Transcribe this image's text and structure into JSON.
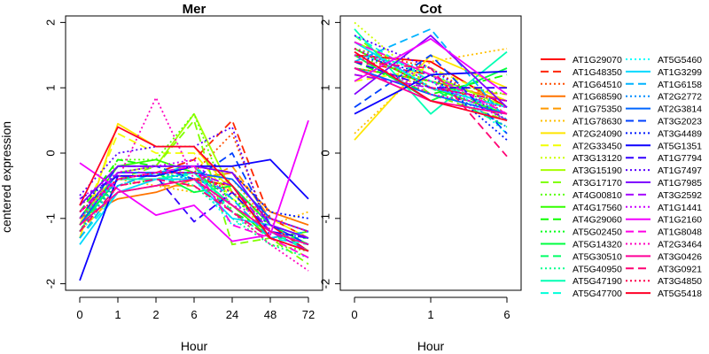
{
  "figure": {
    "ylabel": "centered expression",
    "xlabel": "Hour"
  },
  "chart_data": [
    {
      "type": "line",
      "title": "Mer",
      "xlabel": "Hour",
      "ylabel": "centered expression",
      "categories": [
        "0",
        "1",
        "2",
        "6",
        "24",
        "48",
        "72"
      ],
      "ylim": [
        -2.1,
        2.1
      ],
      "yticks": [
        "-2",
        "-1",
        "0",
        "1",
        "2"
      ],
      "grid": false,
      "series": [
        {
          "name": "AT1G29070",
          "values": [
            -1.0,
            -0.4,
            -0.4,
            -0.4,
            -0.5,
            -1.1,
            -1.5
          ]
        },
        {
          "name": "AT1G48350",
          "values": [
            -0.9,
            -0.4,
            -0.3,
            -0.1,
            0.5,
            -1.0,
            -1.3
          ]
        },
        {
          "name": "AT1G64510",
          "values": [
            -1.1,
            -0.5,
            -0.4,
            -0.3,
            0.3,
            -1.2,
            -1.4
          ]
        },
        {
          "name": "AT1G68590",
          "values": [
            -1.0,
            -0.7,
            -0.6,
            -0.4,
            -0.3,
            -0.9,
            -1.1
          ]
        },
        {
          "name": "AT1G75350",
          "values": [
            -1.2,
            -0.6,
            -0.5,
            -0.5,
            -0.2,
            -1.0,
            -1.2
          ]
        },
        {
          "name": "AT1G78630",
          "values": [
            -0.8,
            -0.4,
            -0.5,
            -0.6,
            -0.4,
            -1.1,
            -0.9
          ]
        },
        {
          "name": "AT2G24090",
          "values": [
            -1.3,
            0.45,
            0.1,
            0.1,
            -0.6,
            -1.2,
            -1.5
          ]
        },
        {
          "name": "AT2G33450",
          "values": [
            -1.1,
            0.3,
            0.0,
            0.0,
            -0.7,
            -1.0,
            -1.3
          ]
        },
        {
          "name": "AT3G13120",
          "values": [
            -1.2,
            -0.6,
            -0.4,
            -0.2,
            -0.6,
            -1.3,
            -1.6
          ]
        },
        {
          "name": "AT3G15190",
          "values": [
            -1.0,
            -0.3,
            -0.2,
            0.6,
            -0.6,
            -1.2,
            -1.4
          ]
        },
        {
          "name": "AT3G17170",
          "values": [
            -1.1,
            -0.4,
            -0.2,
            0.5,
            -1.4,
            -1.3,
            -1.7
          ]
        },
        {
          "name": "AT4G00810",
          "values": [
            -1.2,
            -0.1,
            -0.1,
            0.6,
            -0.9,
            -1.4,
            -1.5
          ]
        },
        {
          "name": "AT4G17560",
          "values": [
            -1.0,
            -0.2,
            -0.1,
            -0.3,
            -0.8,
            -1.3,
            -1.2
          ]
        },
        {
          "name": "AT4G29060",
          "values": [
            -0.9,
            -0.1,
            -0.2,
            -0.4,
            -0.9,
            -1.2,
            -1.4
          ]
        },
        {
          "name": "AT5G02450",
          "values": [
            -1.0,
            -0.5,
            -0.4,
            -0.3,
            -0.7,
            -1.1,
            -1.3
          ]
        },
        {
          "name": "AT5G14320",
          "values": [
            -1.1,
            -0.4,
            -0.3,
            -0.6,
            -0.5,
            -1.1,
            -1.4
          ]
        },
        {
          "name": "AT5G30510",
          "values": [
            -1.2,
            -0.3,
            -0.3,
            -0.2,
            -0.9,
            -1.3,
            -1.3
          ]
        },
        {
          "name": "AT5G40950",
          "values": [
            -1.1,
            -0.5,
            -0.3,
            -0.5,
            -1.0,
            -1.4,
            -1.6
          ]
        },
        {
          "name": "AT5G47190",
          "values": [
            -1.0,
            -0.4,
            -0.4,
            -0.3,
            -0.8,
            -1.2,
            -1.5
          ]
        },
        {
          "name": "AT5G47700",
          "values": [
            -1.3,
            -0.6,
            -0.5,
            -0.3,
            -0.9,
            -1.3,
            -1.4
          ]
        },
        {
          "name": "AT5G5460",
          "values": [
            -1.2,
            -0.5,
            -0.3,
            -0.4,
            -1.1,
            -1.0,
            -1.2
          ]
        },
        {
          "name": "AT1G3299",
          "values": [
            -1.4,
            -0.6,
            -0.4,
            -0.4,
            -1.0,
            -1.1,
            -1.3
          ]
        },
        {
          "name": "AT1G6158",
          "values": [
            -1.3,
            -0.5,
            -0.3,
            -0.2,
            -0.7,
            -1.3,
            -1.2
          ]
        },
        {
          "name": "AT2G2772",
          "values": [
            -1.2,
            -0.4,
            -0.3,
            -0.4,
            -0.6,
            -1.2,
            -1.3
          ]
        },
        {
          "name": "AT2G3814",
          "values": [
            -1.1,
            -0.3,
            -0.3,
            -0.3,
            -0.4,
            -1.0,
            -1.2
          ]
        },
        {
          "name": "AT3G2023",
          "values": [
            -1.0,
            -0.2,
            -0.2,
            -0.4,
            0.0,
            -1.1,
            -1.4
          ]
        },
        {
          "name": "AT3G4489",
          "values": [
            -0.8,
            -0.3,
            -0.2,
            -0.2,
            -0.3,
            -0.9,
            -1.0
          ]
        },
        {
          "name": "AT5G1351",
          "values": [
            -1.95,
            -0.35,
            -0.35,
            -0.2,
            -0.2,
            -0.1,
            -0.7
          ]
        },
        {
          "name": "AT1G7794",
          "values": [
            -0.7,
            -0.35,
            -0.35,
            -1.05,
            -0.6,
            -1.2,
            -1.3
          ]
        },
        {
          "name": "AT1G7497",
          "values": [
            -0.65,
            0.0,
            0.1,
            0.1,
            0.4,
            -1.3,
            -1.5
          ]
        },
        {
          "name": "AT1G7985",
          "values": [
            -0.8,
            -0.2,
            -0.2,
            -0.2,
            -0.3,
            -1.1,
            -1.3
          ]
        },
        {
          "name": "AT3G2592",
          "values": [
            -0.9,
            -0.3,
            -0.3,
            -0.3,
            -0.5,
            -1.2,
            -1.5
          ]
        },
        {
          "name": "AT1G1441",
          "values": [
            -0.7,
            -0.3,
            -0.2,
            -0.1,
            -0.8,
            -1.0,
            -1.2
          ]
        },
        {
          "name": "AT1G2160",
          "values": [
            -0.15,
            -0.55,
            -0.95,
            -0.8,
            -1.35,
            -1.25,
            0.5
          ]
        },
        {
          "name": "AT1G8048",
          "values": [
            -0.9,
            -0.4,
            -0.3,
            -0.2,
            -1.1,
            -1.3,
            -1.6
          ]
        },
        {
          "name": "AT2G3464",
          "values": [
            -1.0,
            -0.4,
            0.85,
            -0.4,
            -0.9,
            -1.4,
            -1.8
          ]
        },
        {
          "name": "AT3G0426",
          "values": [
            -1.1,
            -0.6,
            -0.5,
            -0.4,
            -0.8,
            -1.2,
            -1.4
          ]
        },
        {
          "name": "AT3G0921",
          "values": [
            -1.2,
            -0.5,
            -0.4,
            -0.5,
            -0.9,
            -1.3,
            -1.5
          ]
        },
        {
          "name": "AT3G4850",
          "values": [
            -0.9,
            -0.4,
            -0.3,
            -0.3,
            -0.6,
            -1.0,
            -1.2
          ]
        },
        {
          "name": "AT5G5418",
          "values": [
            -0.8,
            0.4,
            0.1,
            0.1,
            -0.5,
            -1.3,
            -1.5
          ]
        }
      ]
    },
    {
      "type": "line",
      "title": "Cot",
      "xlabel": "Hour",
      "ylabel": "",
      "categories": [
        "0",
        "1",
        "6"
      ],
      "ylim": [
        -2.1,
        2.1
      ],
      "yticks": [
        "-2",
        "-1",
        "0",
        "1",
        "2"
      ],
      "grid": false,
      "series": [
        {
          "name": "AT1G29070",
          "values": [
            1.5,
            1.4,
            0.7
          ]
        },
        {
          "name": "AT1G48350",
          "values": [
            1.4,
            1.2,
            0.5
          ]
        },
        {
          "name": "AT1G64510",
          "values": [
            1.6,
            1.3,
            0.6
          ]
        },
        {
          "name": "AT1G68590",
          "values": [
            1.3,
            1.1,
            0.8
          ]
        },
        {
          "name": "AT1G75350",
          "values": [
            1.2,
            1.0,
            0.9
          ]
        },
        {
          "name": "AT1G78630",
          "values": [
            0.3,
            1.4,
            1.6
          ]
        },
        {
          "name": "AT2G24090",
          "values": [
            0.2,
            1.5,
            1.0
          ]
        },
        {
          "name": "AT2G33450",
          "values": [
            1.1,
            1.3,
            0.8
          ]
        },
        {
          "name": "AT3G13120",
          "values": [
            2.0,
            1.0,
            0.6
          ]
        },
        {
          "name": "AT3G15190",
          "values": [
            1.7,
            1.2,
            0.7
          ]
        },
        {
          "name": "AT3G17170",
          "values": [
            1.8,
            0.9,
            0.5
          ]
        },
        {
          "name": "AT4G00810",
          "values": [
            1.5,
            1.1,
            0.9
          ]
        },
        {
          "name": "AT4G17560",
          "values": [
            1.6,
            1.0,
            0.6
          ]
        },
        {
          "name": "AT4G29060",
          "values": [
            1.4,
            0.9,
            1.2
          ]
        },
        {
          "name": "AT5G02450",
          "values": [
            1.3,
            1.1,
            0.7
          ]
        },
        {
          "name": "AT5G14320",
          "values": [
            1.5,
            0.8,
            1.3
          ]
        },
        {
          "name": "AT5G30510",
          "values": [
            1.7,
            1.0,
            0.4
          ]
        },
        {
          "name": "AT5G40950",
          "values": [
            1.6,
            1.2,
            0.5
          ]
        },
        {
          "name": "AT5G47190",
          "values": [
            1.9,
            0.6,
            1.55
          ]
        },
        {
          "name": "AT5G47700",
          "values": [
            1.8,
            1.1,
            0.6
          ]
        },
        {
          "name": "AT5G5460",
          "values": [
            1.5,
            1.3,
            0.3
          ]
        },
        {
          "name": "AT1G3299",
          "values": [
            1.7,
            1.0,
            0.7
          ]
        },
        {
          "name": "AT1G6158",
          "values": [
            1.4,
            1.9,
            0.5
          ]
        },
        {
          "name": "AT2G2772",
          "values": [
            1.6,
            1.1,
            0.4
          ]
        },
        {
          "name": "AT2G3814",
          "values": [
            1.3,
            0.9,
            0.6
          ]
        },
        {
          "name": "AT3G2023",
          "values": [
            0.7,
            1.5,
            0.3
          ]
        },
        {
          "name": "AT3G4489",
          "values": [
            1.5,
            1.2,
            0.2
          ]
        },
        {
          "name": "AT5G1351",
          "values": [
            0.6,
            1.2,
            1.25
          ]
        },
        {
          "name": "AT1G7794",
          "values": [
            1.4,
            1.0,
            1.0
          ]
        },
        {
          "name": "AT1G7497",
          "values": [
            1.8,
            1.3,
            0.5
          ]
        },
        {
          "name": "AT1G7985",
          "values": [
            0.9,
            1.8,
            0.7
          ]
        },
        {
          "name": "AT3G2592",
          "values": [
            1.2,
            1.0,
            0.8
          ]
        },
        {
          "name": "AT1G1441",
          "values": [
            1.6,
            1.1,
            0.5
          ]
        },
        {
          "name": "AT1G2160",
          "values": [
            1.1,
            1.75,
            0.9
          ]
        },
        {
          "name": "AT1G8048",
          "values": [
            1.7,
            1.2,
            0.6
          ]
        },
        {
          "name": "AT2G3464",
          "values": [
            1.5,
            0.9,
            0.7
          ]
        },
        {
          "name": "AT3G0426",
          "values": [
            1.3,
            0.8,
            0.6
          ]
        },
        {
          "name": "AT3G0921",
          "values": [
            1.4,
            1.3,
            -0.05
          ]
        },
        {
          "name": "AT3G4850",
          "values": [
            1.6,
            1.0,
            0.8
          ]
        },
        {
          "name": "AT5G5418",
          "values": [
            1.55,
            0.8,
            0.5
          ]
        }
      ]
    }
  ],
  "legend": {
    "placement": "right",
    "entries": [
      {
        "label": "AT1G29070",
        "color": "#FF0000",
        "dash": "solid"
      },
      {
        "label": "AT1G48350",
        "color": "#FF2600",
        "dash": "dashed"
      },
      {
        "label": "AT1G64510",
        "color": "#FF4D00",
        "dash": "dotted"
      },
      {
        "label": "AT1G68590",
        "color": "#FF7300",
        "dash": "solid"
      },
      {
        "label": "AT1G75350",
        "color": "#FF9900",
        "dash": "dashed"
      },
      {
        "label": "AT1G78630",
        "color": "#FFBF00",
        "dash": "dotted"
      },
      {
        "label": "AT2G24090",
        "color": "#FFE500",
        "dash": "solid"
      },
      {
        "label": "AT2G33450",
        "color": "#F2FF00",
        "dash": "dashed"
      },
      {
        "label": "AT3G13120",
        "color": "#CCFF00",
        "dash": "dotted"
      },
      {
        "label": "AT3G15190",
        "color": "#A6FF00",
        "dash": "solid"
      },
      {
        "label": "AT3G17170",
        "color": "#80FF00",
        "dash": "dashed"
      },
      {
        "label": "AT4G00810",
        "color": "#59FF00",
        "dash": "dotted"
      },
      {
        "label": "AT4G17560",
        "color": "#33FF00",
        "dash": "solid"
      },
      {
        "label": "AT4G29060",
        "color": "#0DFF00",
        "dash": "dashed"
      },
      {
        "label": "AT5G02450",
        "color": "#00FF1A",
        "dash": "dotted"
      },
      {
        "label": "AT5G14320",
        "color": "#00FF40",
        "dash": "solid"
      },
      {
        "label": "AT5G30510",
        "color": "#00FF66",
        "dash": "dashed"
      },
      {
        "label": "AT5G40950",
        "color": "#00FF8C",
        "dash": "dotted"
      },
      {
        "label": "AT5G47190",
        "color": "#00FFB3",
        "dash": "solid"
      },
      {
        "label": "AT5G47700",
        "color": "#00FFD9",
        "dash": "dashed"
      },
      {
        "label": "AT5G5460",
        "color": "#00FFFF",
        "dash": "dotted"
      },
      {
        "label": "AT1G3299",
        "color": "#00D9FF",
        "dash": "solid"
      },
      {
        "label": "AT1G6158",
        "color": "#00B3FF",
        "dash": "dashed"
      },
      {
        "label": "AT2G2772",
        "color": "#008CFF",
        "dash": "dotted"
      },
      {
        "label": "AT2G3814",
        "color": "#0066FF",
        "dash": "solid"
      },
      {
        "label": "AT3G2023",
        "color": "#0040FF",
        "dash": "dashed"
      },
      {
        "label": "AT3G4489",
        "color": "#001AFF",
        "dash": "dotted"
      },
      {
        "label": "AT5G1351",
        "color": "#0D00FF",
        "dash": "solid"
      },
      {
        "label": "AT1G7794",
        "color": "#3300FF",
        "dash": "dashed"
      },
      {
        "label": "AT1G7497",
        "color": "#5900FF",
        "dash": "dotted"
      },
      {
        "label": "AT1G7985",
        "color": "#8000FF",
        "dash": "solid"
      },
      {
        "label": "AT3G2592",
        "color": "#A600FF",
        "dash": "dashed"
      },
      {
        "label": "AT1G1441",
        "color": "#CC00FF",
        "dash": "dotted"
      },
      {
        "label": "AT1G2160",
        "color": "#F200FF",
        "dash": "solid"
      },
      {
        "label": "AT1G8048",
        "color": "#FF00E5",
        "dash": "dashed"
      },
      {
        "label": "AT2G3464",
        "color": "#FF00BF",
        "dash": "dotted"
      },
      {
        "label": "AT3G0426",
        "color": "#FF0099",
        "dash": "solid"
      },
      {
        "label": "AT3G0921",
        "color": "#FF0073",
        "dash": "dashed"
      },
      {
        "label": "AT3G4850",
        "color": "#FF004D",
        "dash": "dotted"
      },
      {
        "label": "AT5G5418",
        "color": "#FF0026",
        "dash": "solid"
      }
    ]
  }
}
